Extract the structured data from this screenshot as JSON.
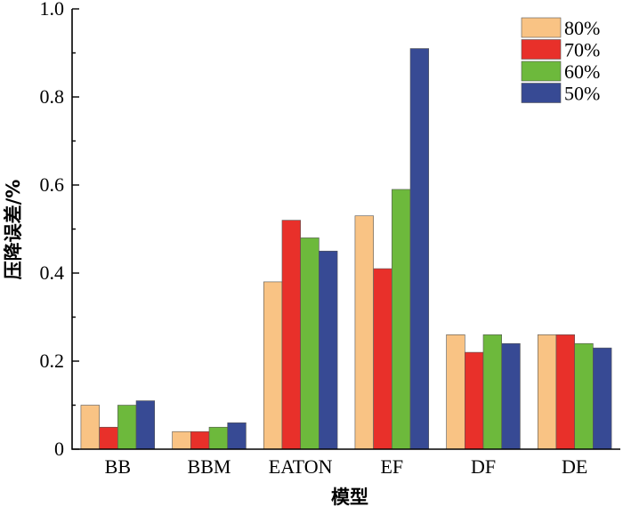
{
  "chart_data": {
    "type": "bar",
    "title": "",
    "xlabel": "模型",
    "ylabel": "压降误差/%",
    "categories": [
      "BB",
      "BBM",
      "EATON",
      "EF",
      "DF",
      "DE"
    ],
    "ylim": [
      0,
      1.0
    ],
    "yticks": [
      "0",
      "0.2",
      "0.4",
      "0.6",
      "0.8",
      "1.0"
    ],
    "grid": false,
    "legend_position": "top-right",
    "series": [
      {
        "name": "80%",
        "color": "#F9C384",
        "values": [
          0.1,
          0.04,
          0.38,
          0.53,
          0.26,
          0.26
        ]
      },
      {
        "name": "70%",
        "color": "#E8302A",
        "values": [
          0.05,
          0.04,
          0.52,
          0.41,
          0.22,
          0.26
        ]
      },
      {
        "name": "60%",
        "color": "#6DB93C",
        "values": [
          0.1,
          0.05,
          0.48,
          0.59,
          0.26,
          0.24
        ]
      },
      {
        "name": "50%",
        "color": "#374A94",
        "values": [
          0.11,
          0.06,
          0.45,
          0.91,
          0.24,
          0.23
        ]
      }
    ]
  }
}
